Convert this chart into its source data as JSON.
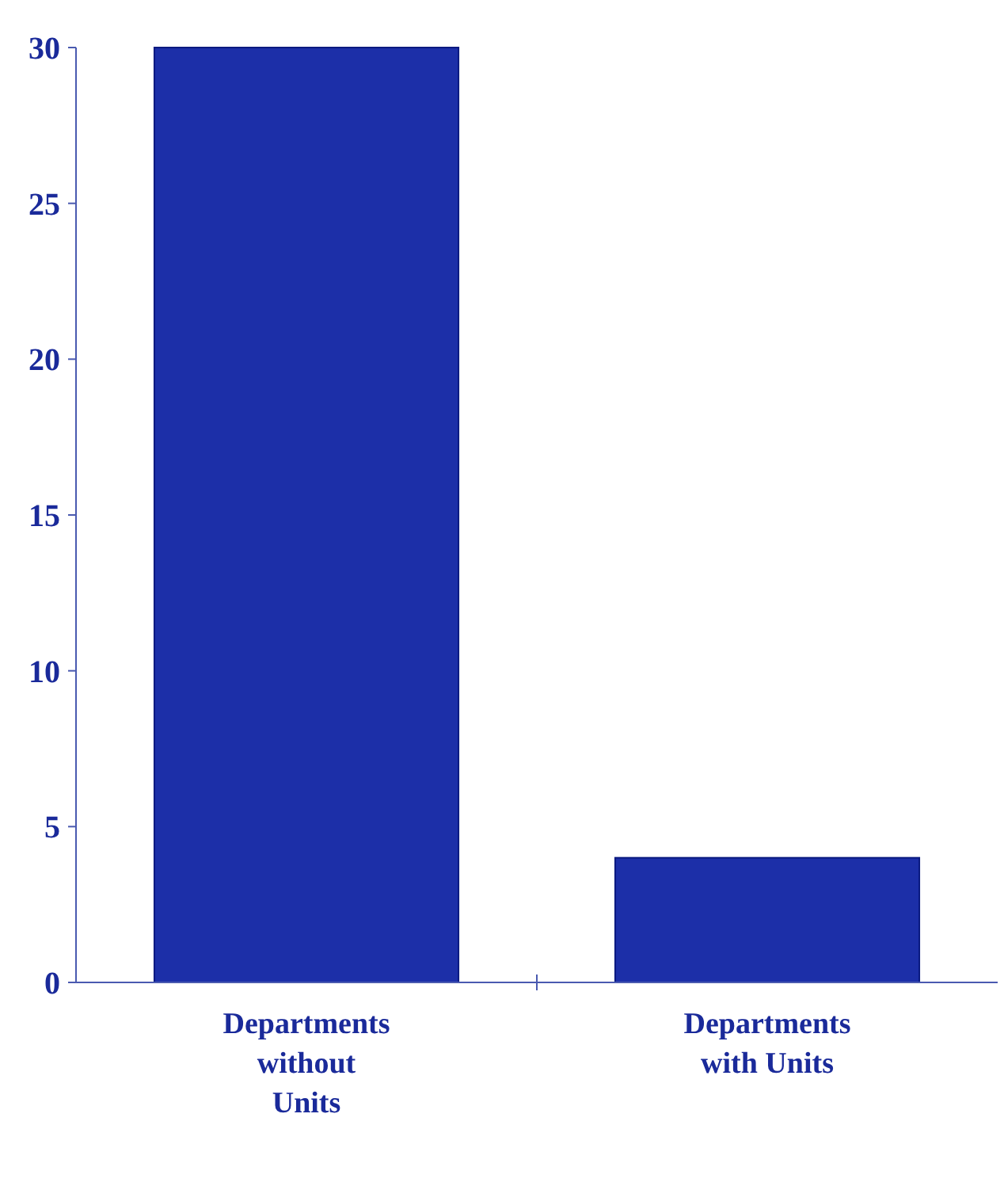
{
  "chart_data": {
    "type": "bar",
    "categories": [
      "Departments without Units",
      "Departments with Units"
    ],
    "values": [
      30,
      4
    ],
    "color": "#1c2fa8",
    "ylim": [
      0,
      30
    ],
    "yticks": [
      0,
      5,
      10,
      15,
      20,
      25,
      30
    ],
    "grid": false
  }
}
